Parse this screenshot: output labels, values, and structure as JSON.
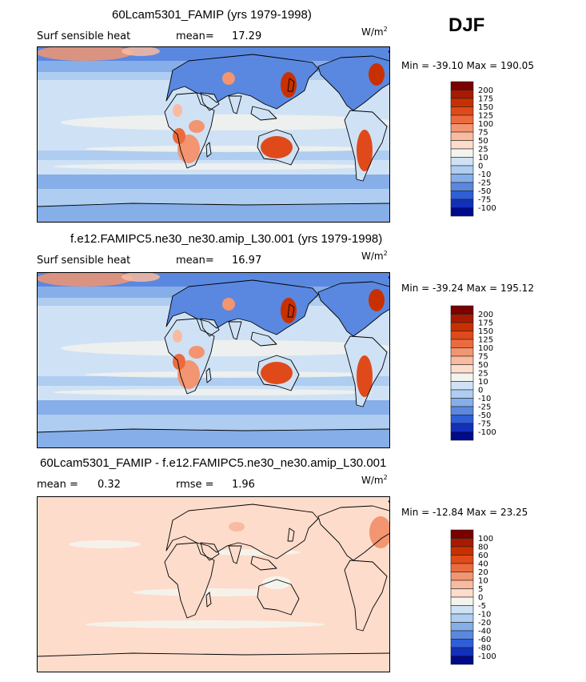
{
  "season": "DJF",
  "panels": [
    {
      "title": "60Lcam5301_FAMIP (yrs 1979-1998)",
      "left_label": "Surf sensible heat",
      "stat_label": "mean=",
      "stat_value": "17.29",
      "stat2_label": "",
      "stat2_value": "",
      "units_base": "W/m",
      "units_exp": "2",
      "min_max": "Min = -39.10 Max = 190.05",
      "type": "abs"
    },
    {
      "title": "f.e12.FAMIPC5.ne30_ne30.amip_L30.001 (yrs 1979-1998)",
      "left_label": "Surf sensible heat",
      "stat_label": "mean=",
      "stat_value": "16.97",
      "stat2_label": "",
      "stat2_value": "",
      "units_base": "W/m",
      "units_exp": "2",
      "min_max": "Min = -39.24 Max = 195.12",
      "type": "abs"
    },
    {
      "title": "60Lcam5301_FAMIP - f.e12.FAMIPC5.ne30_ne30.amip_L30.001",
      "left_label": "mean =",
      "stat_label": "",
      "stat_value": "0.32",
      "stat2_label": "rmse =",
      "stat2_value": "1.96",
      "units_base": "W/m",
      "units_exp": "2",
      "min_max": "Min = -12.84 Max = 23.25",
      "type": "diff"
    }
  ],
  "chart_data": {
    "type": "heatmap",
    "variable": "Surf sensible heat",
    "colorbars": {
      "abs": {
        "labels": [
          "200",
          "175",
          "150",
          "125",
          "100",
          "75",
          "50",
          "25",
          "10",
          "0",
          "-10",
          "-25",
          "-50",
          "-75",
          "-100"
        ],
        "colors": [
          "#7a0000",
          "#a81a00",
          "#c93000",
          "#e04a1a",
          "#ec6b3e",
          "#f29570",
          "#f8bba0",
          "#fddccb",
          "#f4f4ee",
          "#cfe2f5",
          "#aecdf0",
          "#86aee8",
          "#5a88e0",
          "#2f5fd6",
          "#1230b8",
          "#000a8a"
        ]
      },
      "diff": {
        "labels": [
          "100",
          "80",
          "60",
          "40",
          "20",
          "10",
          "5",
          "0",
          "-5",
          "-10",
          "-20",
          "-40",
          "-60",
          "-80",
          "-100"
        ],
        "colors": [
          "#7a0000",
          "#a81a00",
          "#c93000",
          "#e04a1a",
          "#ec6b3e",
          "#f29570",
          "#f8bba0",
          "#fddccb",
          "#f4f4ee",
          "#cfe2f5",
          "#aecdf0",
          "#86aee8",
          "#5a88e0",
          "#2f5fd6",
          "#1230b8",
          "#000a8a"
        ]
      }
    }
  }
}
